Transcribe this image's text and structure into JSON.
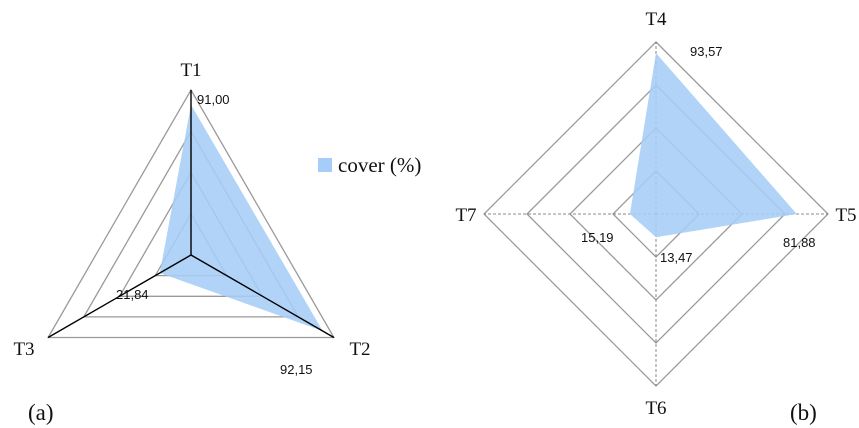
{
  "chart_data": [
    {
      "type": "radar",
      "panel_label": "(a)",
      "axes": [
        "T1",
        "T2",
        "T3"
      ],
      "series": [
        {
          "name": "cover (%)",
          "values": [
            91.0,
            92.15,
            21.84
          ]
        }
      ],
      "value_labels": [
        "91,00",
        "92,15",
        "21,84"
      ],
      "range": [
        0,
        100
      ],
      "grid_levels": 4,
      "legend": {
        "label": "cover (%)",
        "position": "right"
      },
      "fill_color": "#a6cdf7"
    },
    {
      "type": "radar",
      "panel_label": "(b)",
      "axes": [
        "T4",
        "T5",
        "T6",
        "T7"
      ],
      "series": [
        {
          "name": "cover (%)",
          "values": [
            93.57,
            81.88,
            13.47,
            15.19
          ]
        }
      ],
      "value_labels": [
        "93,57",
        "81,88",
        "13,47",
        "15,19"
      ],
      "range": [
        0,
        100
      ],
      "grid_levels": 4,
      "fill_color": "#a6cdf7"
    }
  ]
}
